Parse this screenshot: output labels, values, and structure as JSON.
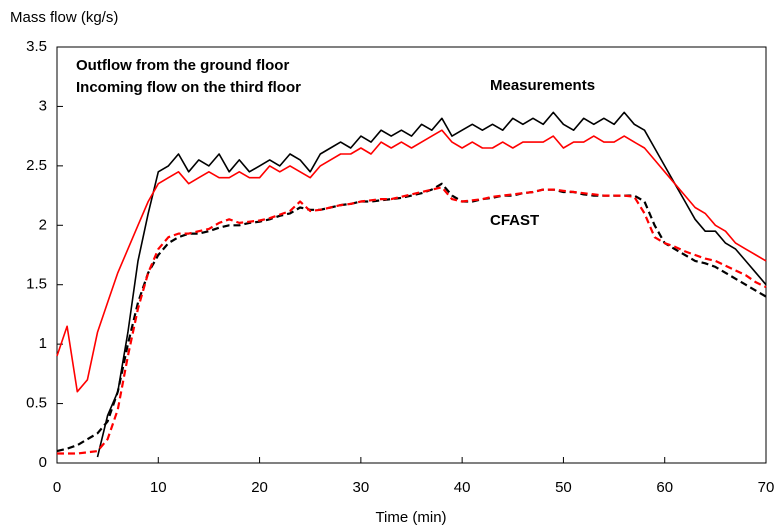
{
  "chart_data": {
    "type": "line",
    "y_label": "Mass flow (kg/s)",
    "x_label": "Time (min)",
    "annotations": [
      "Measurements",
      "CFAST"
    ],
    "x": [
      0,
      1,
      2,
      3,
      4,
      5,
      6,
      7,
      8,
      9,
      10,
      11,
      12,
      13,
      14,
      15,
      16,
      17,
      18,
      19,
      20,
      21,
      22,
      23,
      24,
      25,
      26,
      27,
      28,
      29,
      30,
      31,
      32,
      33,
      34,
      35,
      36,
      37,
      38,
      39,
      40,
      41,
      42,
      43,
      44,
      45,
      46,
      47,
      48,
      49,
      50,
      51,
      52,
      53,
      54,
      55,
      56,
      57,
      58,
      59,
      60,
      61,
      62,
      63,
      64,
      65,
      66,
      67,
      68,
      69,
      70
    ],
    "series": [
      {
        "name": "Outflow from the ground floor",
        "color": "#000000",
        "dash": false,
        "values": [
          null,
          null,
          null,
          null,
          0.05,
          0.4,
          0.6,
          1.1,
          1.7,
          2.1,
          2.45,
          2.5,
          2.6,
          2.45,
          2.55,
          2.5,
          2.6,
          2.45,
          2.55,
          2.45,
          2.5,
          2.55,
          2.5,
          2.6,
          2.55,
          2.45,
          2.6,
          2.65,
          2.7,
          2.65,
          2.75,
          2.7,
          2.8,
          2.75,
          2.8,
          2.75,
          2.85,
          2.8,
          2.9,
          2.75,
          2.8,
          2.85,
          2.8,
          2.85,
          2.8,
          2.9,
          2.85,
          2.9,
          2.85,
          2.95,
          2.85,
          2.8,
          2.9,
          2.85,
          2.9,
          2.85,
          2.95,
          2.85,
          2.8,
          2.65,
          2.5,
          2.35,
          2.2,
          2.05,
          1.95,
          1.95,
          1.85,
          1.8,
          1.7,
          1.6,
          1.5
        ]
      },
      {
        "name": "Incoming flow on the third floor",
        "color": "#ff0000",
        "dash": false,
        "values": [
          0.9,
          1.15,
          0.6,
          0.7,
          1.1,
          1.35,
          1.6,
          1.8,
          2.0,
          2.2,
          2.35,
          2.4,
          2.45,
          2.35,
          2.4,
          2.45,
          2.4,
          2.4,
          2.45,
          2.4,
          2.4,
          2.5,
          2.45,
          2.5,
          2.45,
          2.4,
          2.5,
          2.55,
          2.6,
          2.6,
          2.65,
          2.6,
          2.7,
          2.65,
          2.7,
          2.65,
          2.7,
          2.75,
          2.8,
          2.7,
          2.65,
          2.7,
          2.65,
          2.65,
          2.7,
          2.65,
          2.7,
          2.7,
          2.7,
          2.75,
          2.65,
          2.7,
          2.7,
          2.75,
          2.7,
          2.7,
          2.75,
          2.7,
          2.65,
          2.55,
          2.45,
          2.35,
          2.25,
          2.15,
          2.1,
          2.0,
          1.95,
          1.85,
          1.8,
          1.75,
          1.7
        ]
      },
      {
        "color": "#000000",
        "dash": true,
        "values": [
          0.1,
          0.12,
          0.15,
          0.2,
          0.25,
          0.35,
          0.6,
          1.0,
          1.35,
          1.6,
          1.75,
          1.85,
          1.9,
          1.93,
          1.93,
          1.95,
          1.98,
          2.0,
          2.0,
          2.02,
          2.03,
          2.05,
          2.08,
          2.1,
          2.15,
          2.13,
          2.13,
          2.15,
          2.17,
          2.18,
          2.2,
          2.2,
          2.21,
          2.22,
          2.23,
          2.25,
          2.27,
          2.3,
          2.35,
          2.25,
          2.2,
          2.2,
          2.22,
          2.23,
          2.25,
          2.25,
          2.27,
          2.28,
          2.3,
          2.3,
          2.28,
          2.28,
          2.26,
          2.25,
          2.25,
          2.25,
          2.25,
          2.25,
          2.2,
          2.0,
          1.85,
          1.8,
          1.75,
          1.7,
          1.68,
          1.65,
          1.6,
          1.55,
          1.5,
          1.45,
          1.4
        ]
      },
      {
        "color": "#ff0000",
        "dash": true,
        "values": [
          0.08,
          0.08,
          0.08,
          0.09,
          0.1,
          0.2,
          0.45,
          0.9,
          1.3,
          1.6,
          1.8,
          1.9,
          1.93,
          1.93,
          1.95,
          1.97,
          2.02,
          2.05,
          2.02,
          2.03,
          2.04,
          2.06,
          2.09,
          2.12,
          2.2,
          2.12,
          2.13,
          2.15,
          2.17,
          2.18,
          2.2,
          2.21,
          2.22,
          2.22,
          2.24,
          2.26,
          2.28,
          2.3,
          2.32,
          2.22,
          2.2,
          2.21,
          2.22,
          2.24,
          2.25,
          2.26,
          2.27,
          2.28,
          2.3,
          2.3,
          2.29,
          2.28,
          2.27,
          2.26,
          2.25,
          2.25,
          2.25,
          2.24,
          2.1,
          1.9,
          1.85,
          1.82,
          1.78,
          1.75,
          1.72,
          1.7,
          1.66,
          1.62,
          1.58,
          1.52,
          1.48
        ]
      }
    ],
    "xlim": [
      0,
      70
    ],
    "xticks": [
      0,
      10,
      20,
      30,
      40,
      50,
      60,
      70
    ],
    "ylim": [
      0,
      3.5
    ],
    "yticks": [
      0,
      0.5,
      1,
      1.5,
      2,
      2.5,
      3,
      3.5
    ]
  }
}
